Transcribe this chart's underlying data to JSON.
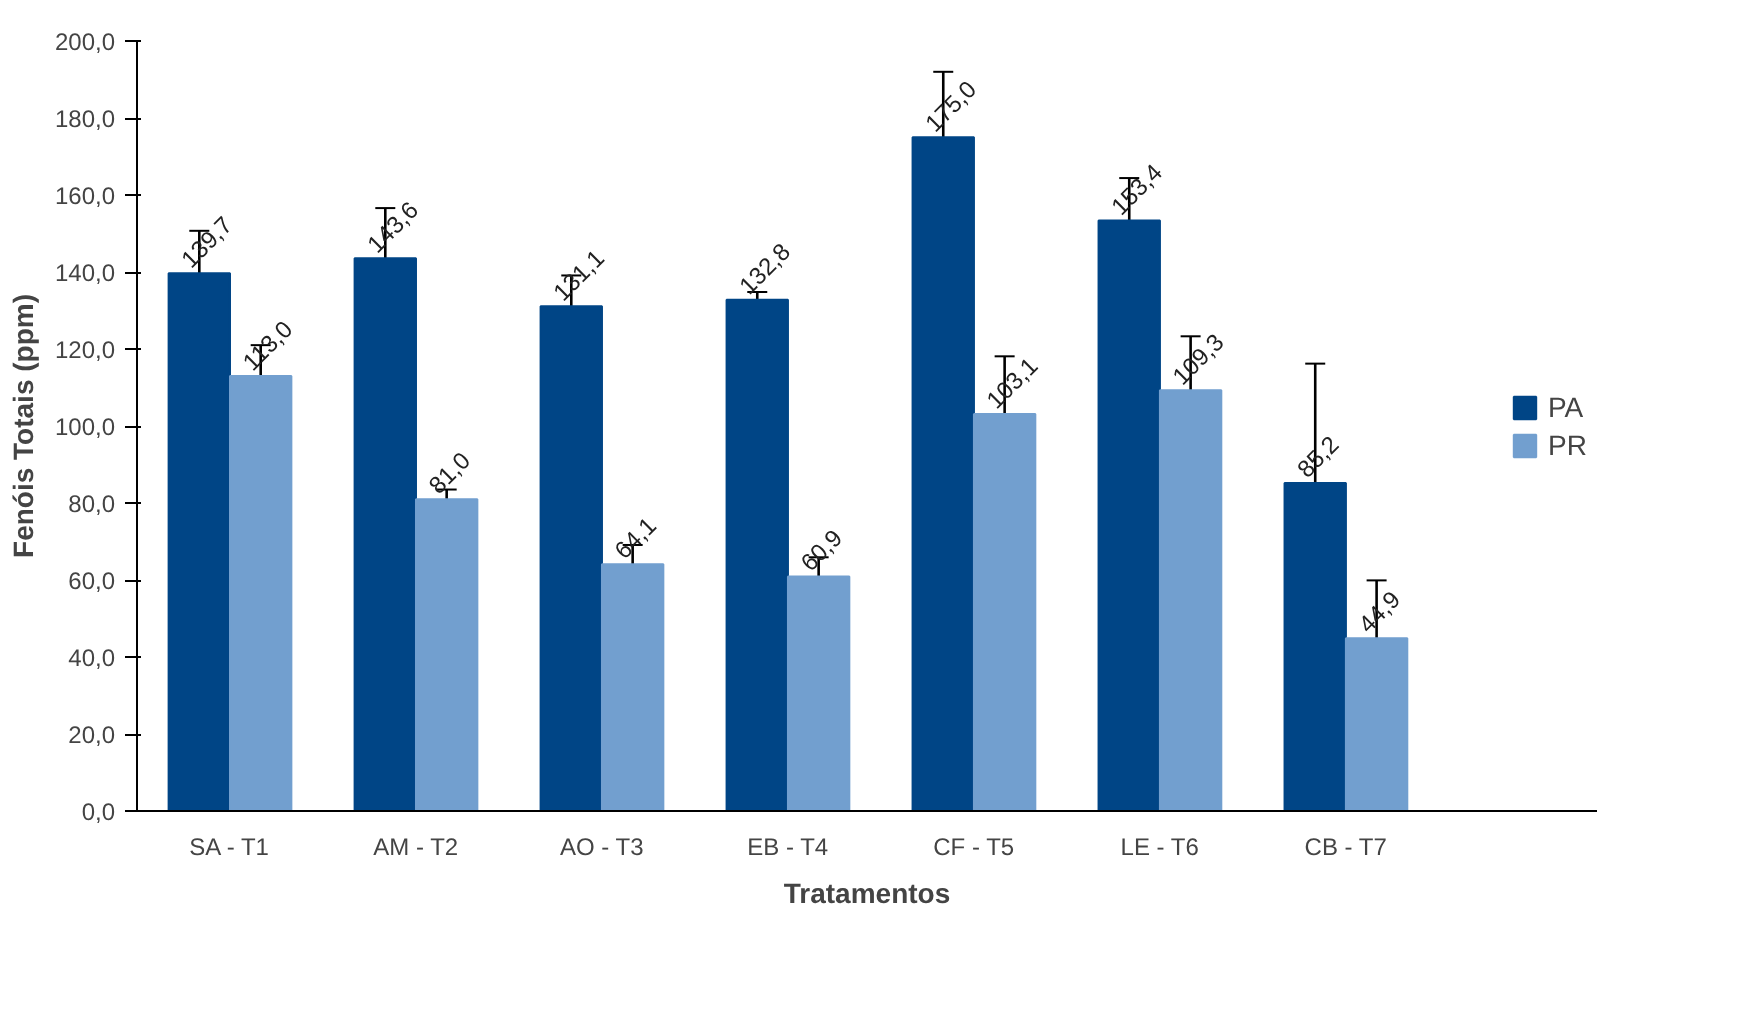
{
  "chart_data": {
    "type": "bar",
    "xlabel": "Tratamentos",
    "ylabel": "Fenóis Totais (ppm)",
    "categories": [
      "SA - T1",
      "AM - T2",
      "AO - T3",
      "EB - T4",
      "CF - T5",
      "LE - T6",
      "CB - T7"
    ],
    "series": [
      {
        "name": "PA",
        "color": "#004586",
        "values": [
          139.7,
          143.6,
          131.1,
          132.8,
          175.0,
          153.4,
          85.2
        ],
        "errors": [
          11,
          13,
          8,
          2,
          17,
          11,
          31
        ],
        "value_labels": [
          "139,7",
          "143,6",
          "131,1",
          "132,8",
          "175,0",
          "153,4",
          "85,2"
        ]
      },
      {
        "name": "PR",
        "color": "#729fcf",
        "values": [
          113.0,
          81.0,
          64.1,
          60.9,
          103.1,
          109.3,
          44.9
        ],
        "errors": [
          8,
          2.5,
          5,
          5,
          15,
          14,
          15
        ],
        "value_labels": [
          "113,0",
          "81,0",
          "64,1",
          "60,9",
          "103,1",
          "109,3",
          "44,9"
        ]
      }
    ],
    "ylim": [
      0,
      200
    ],
    "yticks": [
      {
        "value": 0,
        "label": "0,0"
      },
      {
        "value": 20,
        "label": "20,0"
      },
      {
        "value": 40,
        "label": "40,0"
      },
      {
        "value": 60,
        "label": "60,0"
      },
      {
        "value": 80,
        "label": "80,0"
      },
      {
        "value": 100,
        "label": "100,0"
      },
      {
        "value": 120,
        "label": "120,0"
      },
      {
        "value": 140,
        "label": "140,0"
      },
      {
        "value": 160,
        "label": "160,0"
      },
      {
        "value": 180,
        "label": "180,0"
      },
      {
        "value": 200,
        "label": "200,0"
      }
    ],
    "grid": false,
    "legend": "right"
  }
}
